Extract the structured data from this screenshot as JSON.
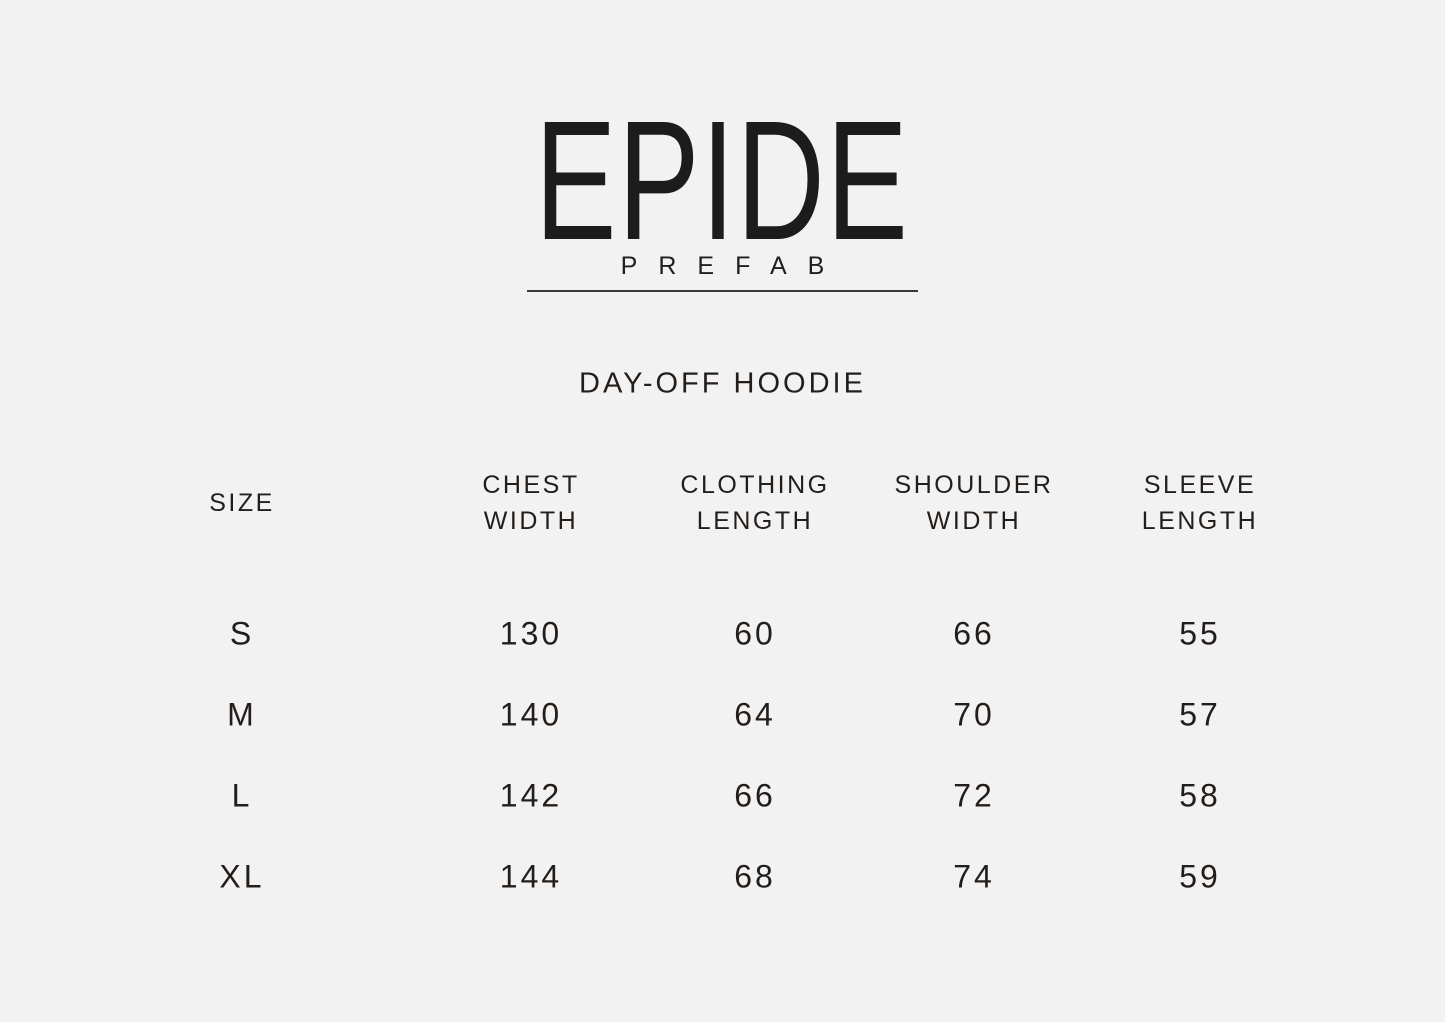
{
  "brand": {
    "logo": "EPIDE",
    "subtitle": "PREFAB"
  },
  "product": {
    "title": "DAY-OFF HOODIE"
  },
  "table": {
    "columns": [
      "SIZE",
      "CHEST\nWIDTH",
      "CLOTHING\nLENGTH",
      "SHOULDER\nWIDTH",
      "SLEEVE\nLENGTH"
    ],
    "rows": [
      {
        "size": "S",
        "chest_width": "130",
        "clothing_length": "60",
        "shoulder_width": "66",
        "sleeve_length": "55"
      },
      {
        "size": "M",
        "chest_width": "140",
        "clothing_length": "64",
        "shoulder_width": "70",
        "sleeve_length": "57"
      },
      {
        "size": "L",
        "chest_width": "142",
        "clothing_length": "66",
        "shoulder_width": "72",
        "sleeve_length": "58"
      },
      {
        "size": "XL",
        "chest_width": "144",
        "clothing_length": "68",
        "shoulder_width": "74",
        "sleeve_length": "59"
      }
    ]
  },
  "colors": {
    "background": "#f2f2f2",
    "text": "#241e1b",
    "logo": "#1c1c1c",
    "rule": "#3a3a3a"
  }
}
